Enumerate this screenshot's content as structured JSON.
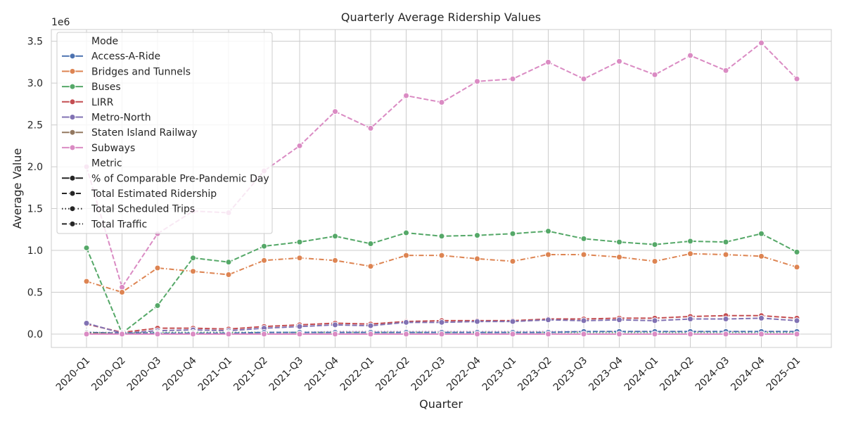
{
  "chart_data": {
    "type": "line",
    "title": "Quarterly Average Ridership Values",
    "xlabel": "Quarter",
    "ylabel": "Average Value",
    "y_offset_text": "1e6",
    "ylim": [
      -0.16,
      3.64
    ],
    "yticks": [
      0.0,
      0.5,
      1.0,
      1.5,
      2.0,
      2.5,
      3.0,
      3.5
    ],
    "ytick_labels": [
      "0.0",
      "0.5",
      "1.0",
      "1.5",
      "2.0",
      "2.5",
      "3.0",
      "3.5"
    ],
    "grid": true,
    "legend_position": "upper-left",
    "categories": [
      "2020-Q1",
      "2020-Q2",
      "2020-Q3",
      "2020-Q4",
      "2021-Q1",
      "2021-Q2",
      "2021-Q3",
      "2021-Q4",
      "2022-Q1",
      "2022-Q2",
      "2022-Q3",
      "2022-Q4",
      "2023-Q1",
      "2023-Q2",
      "2023-Q3",
      "2023-Q4",
      "2024-Q1",
      "2024-Q2",
      "2024-Q3",
      "2024-Q4",
      "2025-Q1"
    ],
    "legend": {
      "mode_title": "Mode",
      "modes": [
        {
          "name": "Access-A-Ride",
          "color": "#4c72b0"
        },
        {
          "name": "Bridges and Tunnels",
          "color": "#dd8452"
        },
        {
          "name": "Buses",
          "color": "#55a868"
        },
        {
          "name": "LIRR",
          "color": "#c44e52"
        },
        {
          "name": "Metro-North",
          "color": "#8172b3"
        },
        {
          "name": "Staten Island Railway",
          "color": "#937860"
        },
        {
          "name": "Subways",
          "color": "#da8bc3"
        }
      ],
      "metric_title": "Metric",
      "metrics": [
        {
          "name": "% of Comparable Pre-Pandemic Day",
          "dash": "solid"
        },
        {
          "name": "Total Estimated Ridership",
          "dash": "dashed"
        },
        {
          "name": "Total Scheduled Trips",
          "dash": "dotted"
        },
        {
          "name": "Total Traffic",
          "dash": "dashdot"
        }
      ]
    },
    "series": [
      {
        "mode": "Subways",
        "metric": "Total Estimated Ridership",
        "color": "#da8bc3",
        "dash": "dashed",
        "values": [
          2.0,
          0.56,
          1.2,
          1.47,
          1.45,
          1.95,
          2.25,
          2.66,
          2.46,
          2.85,
          2.77,
          3.02,
          3.05,
          3.25,
          3.05,
          3.26,
          3.1,
          3.33,
          3.15,
          3.48,
          3.05
        ]
      },
      {
        "mode": "Buses",
        "metric": "Total Estimated Ridership",
        "color": "#55a868",
        "dash": "dashed",
        "values": [
          1.03,
          0.01,
          0.34,
          0.91,
          0.86,
          1.05,
          1.1,
          1.17,
          1.08,
          1.21,
          1.17,
          1.18,
          1.2,
          1.23,
          1.14,
          1.1,
          1.07,
          1.11,
          1.1,
          1.2,
          0.98
        ]
      },
      {
        "mode": "Bridges and Tunnels",
        "metric": "Total Traffic",
        "color": "#dd8452",
        "dash": "dashdot",
        "values": [
          0.63,
          0.5,
          0.79,
          0.75,
          0.71,
          0.88,
          0.91,
          0.88,
          0.81,
          0.94,
          0.94,
          0.9,
          0.87,
          0.95,
          0.95,
          0.92,
          0.87,
          0.96,
          0.95,
          0.93,
          0.8
        ]
      },
      {
        "mode": "LIRR",
        "metric": "Total Estimated Ridership",
        "color": "#c44e52",
        "dash": "dashed",
        "values": [
          0.12,
          0.02,
          0.07,
          0.07,
          0.06,
          0.09,
          0.11,
          0.13,
          0.12,
          0.15,
          0.16,
          0.16,
          0.16,
          0.18,
          0.18,
          0.19,
          0.19,
          0.21,
          0.22,
          0.22,
          0.19
        ]
      },
      {
        "mode": "Metro-North",
        "metric": "Total Estimated Ridership",
        "color": "#8172b3",
        "dash": "dashed",
        "values": [
          0.13,
          0.01,
          0.04,
          0.05,
          0.04,
          0.07,
          0.09,
          0.11,
          0.1,
          0.14,
          0.14,
          0.15,
          0.15,
          0.17,
          0.16,
          0.17,
          0.16,
          0.18,
          0.18,
          0.19,
          0.16
        ]
      },
      {
        "mode": "Subways",
        "metric": "Total Scheduled Trips",
        "color": "#da8bc3",
        "dash": "dotted",
        "values": [
          0.02,
          0.02,
          0.02,
          0.02,
          0.02,
          0.02,
          0.02,
          0.03,
          0.03,
          0.03,
          0.03,
          0.03,
          0.03,
          0.03,
          0.03,
          0.03,
          0.03,
          0.03,
          0.03,
          0.03,
          0.03
        ]
      },
      {
        "mode": "Buses",
        "metric": "Total Scheduled Trips",
        "color": "#55a868",
        "dash": "dotted",
        "values": [
          0.02,
          0.01,
          0.02,
          0.02,
          0.02,
          0.02,
          0.02,
          0.02,
          0.02,
          0.02,
          0.02,
          0.02,
          0.02,
          0.02,
          0.02,
          0.02,
          0.02,
          0.02,
          0.02,
          0.02,
          0.02
        ]
      },
      {
        "mode": "Access-A-Ride",
        "metric": "Total Estimated Ridership",
        "color": "#4c72b0",
        "dash": "dashed",
        "values": [
          0.02,
          0.01,
          0.01,
          0.01,
          0.01,
          0.02,
          0.02,
          0.02,
          0.02,
          0.02,
          0.02,
          0.02,
          0.02,
          0.02,
          0.03,
          0.03,
          0.03,
          0.03,
          0.03,
          0.03,
          0.03
        ]
      },
      {
        "mode": "Staten Island Railway",
        "metric": "Total Estimated Ridership",
        "color": "#937860",
        "dash": "dashed",
        "values": [
          0.01,
          0.0,
          0.0,
          0.0,
          0.0,
          0.0,
          0.0,
          0.0,
          0.0,
          0.0,
          0.0,
          0.0,
          0.0,
          0.0,
          0.0,
          0.0,
          0.0,
          0.0,
          0.0,
          0.0,
          0.0
        ]
      },
      {
        "mode": "Subways",
        "metric": "% of Comparable Pre-Pandemic Day",
        "color": "#da8bc3",
        "dash": "solid",
        "values": [
          0.0,
          0.0,
          0.0,
          0.0,
          0.0,
          0.0,
          0.0,
          0.0,
          0.0,
          0.0,
          0.0,
          0.0,
          0.0,
          0.0,
          0.0,
          0.0,
          0.0,
          0.0,
          0.0,
          0.0,
          0.0
        ]
      }
    ]
  }
}
